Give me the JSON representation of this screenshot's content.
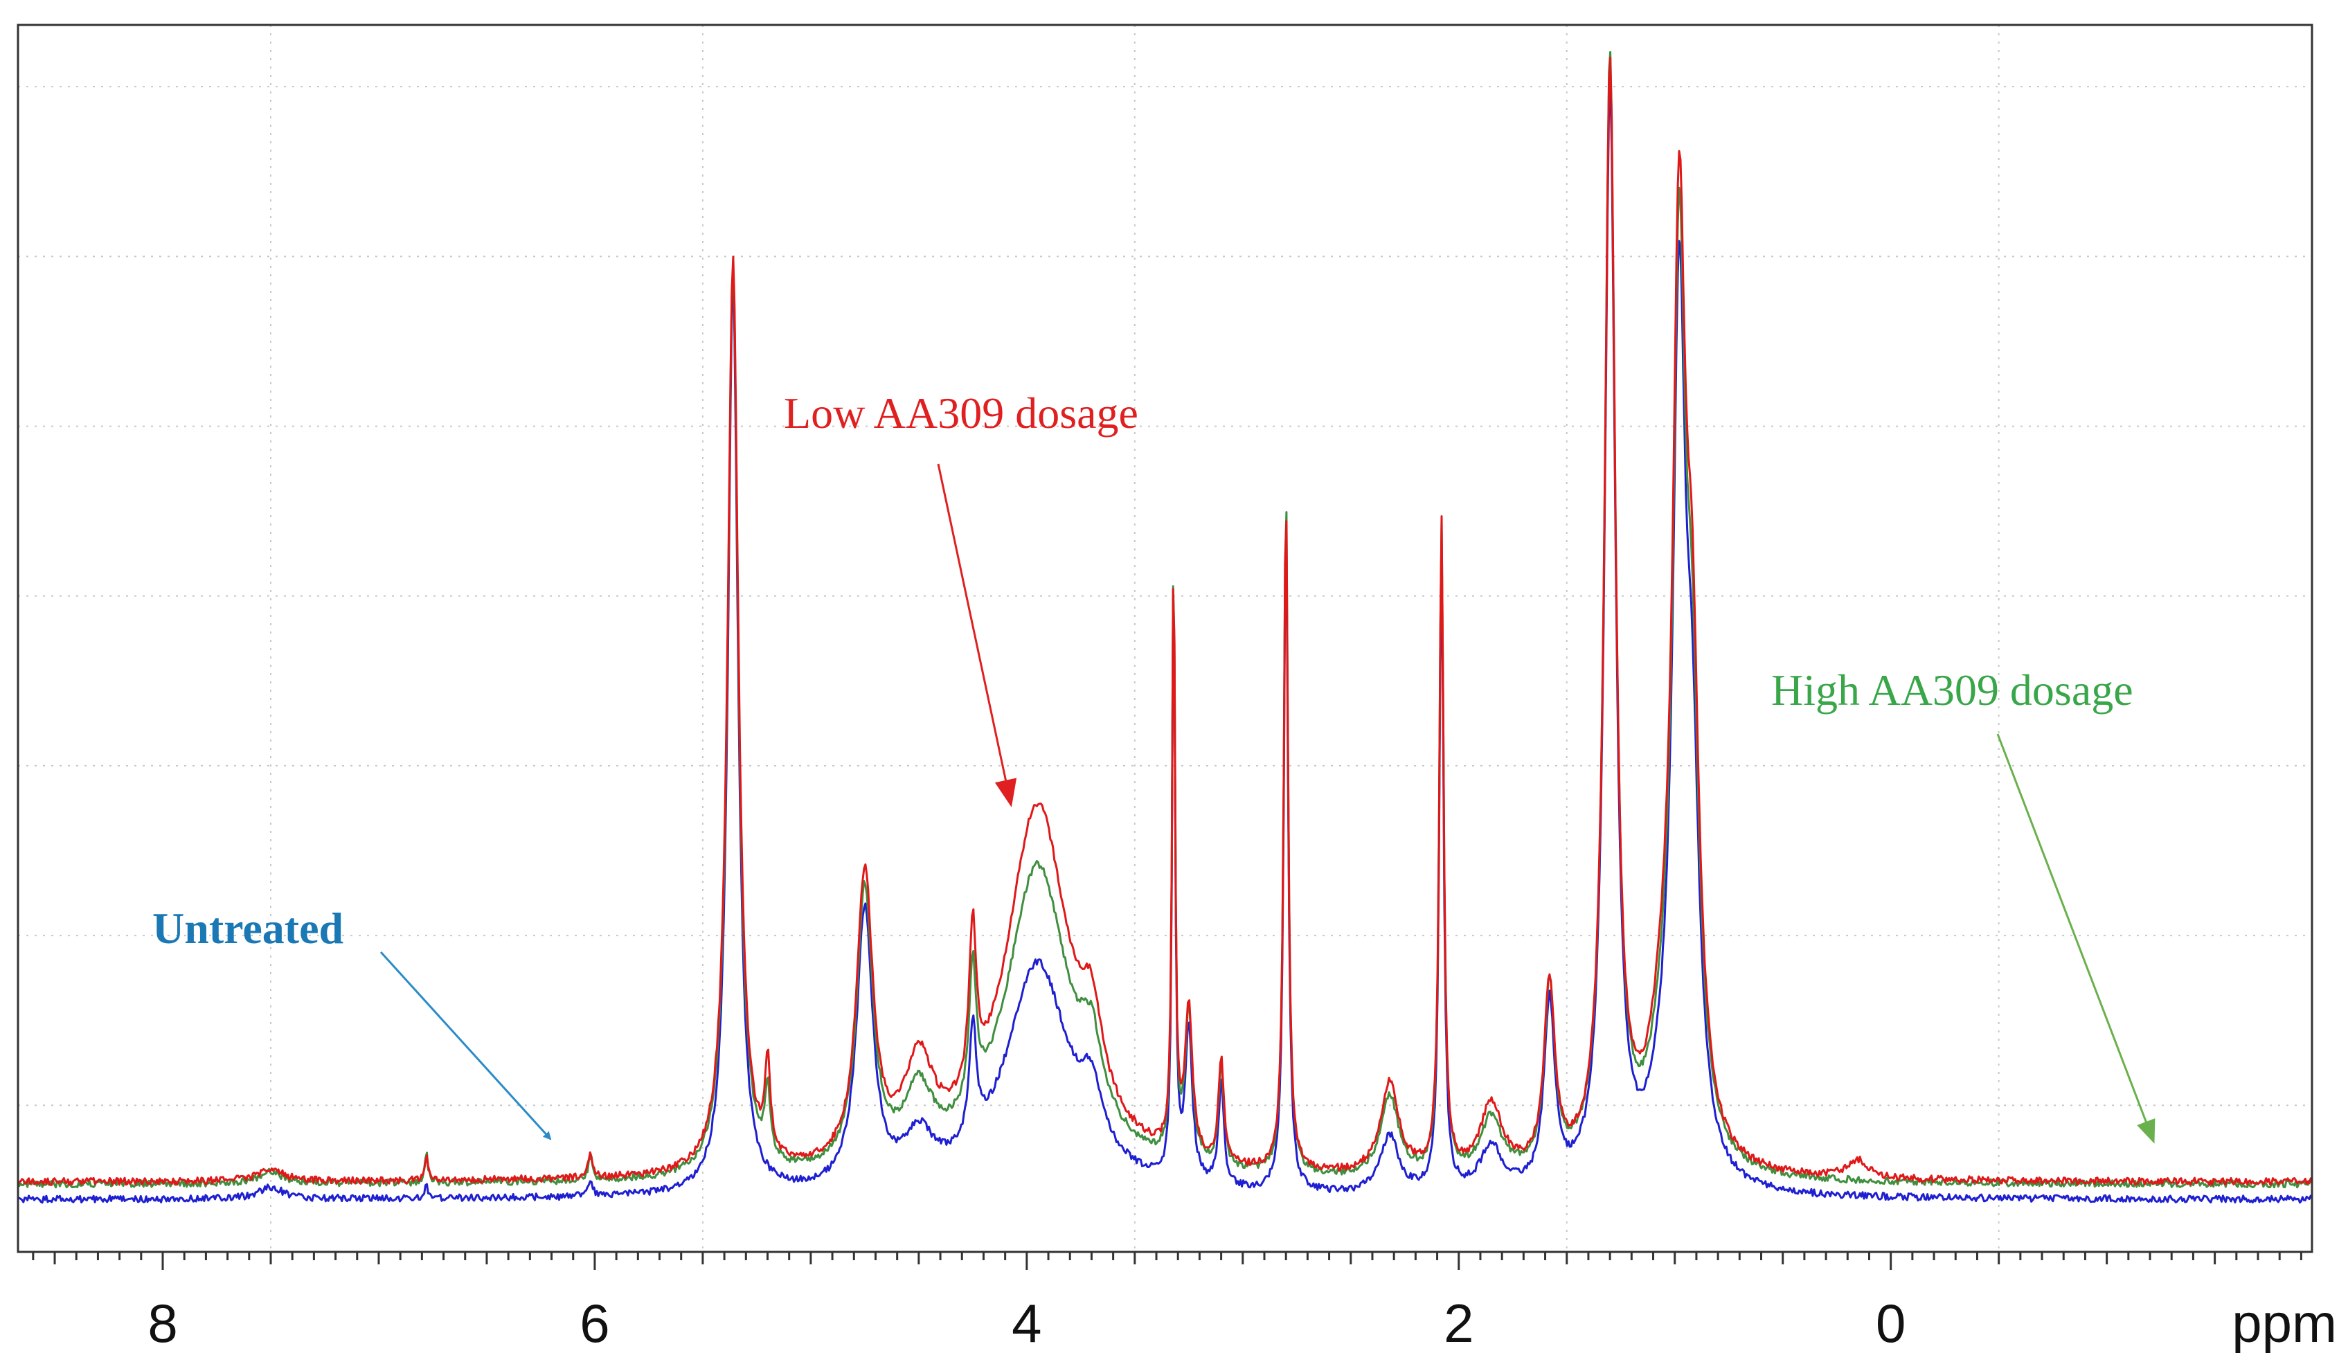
{
  "chart_data": {
    "type": "line",
    "title": "",
    "xlabel": "ppm",
    "ylabel": "",
    "x_reversed": true,
    "xlim": [
      8.67,
      -1.95
    ],
    "ylim": [
      -0.06,
      1.0
    ],
    "x_major_ticks": [
      8,
      6,
      4,
      2,
      0
    ],
    "x_tick_labels": [
      "8",
      "6",
      "4",
      "2",
      "0"
    ],
    "x_grid": [
      7.5,
      5.5,
      3.5,
      1.5,
      -0.5
    ],
    "y_grid": [
      0.0667,
      0.2133,
      0.36,
      0.5067,
      0.6533,
      0.8,
      0.9467
    ],
    "grid": "dotted",
    "series": [
      {
        "name": "Untreated",
        "color": "#1f1fd2",
        "baseline": -0.015,
        "peaks": [
          [
            5.36,
            0.79,
            0.028
          ],
          [
            4.75,
            0.24,
            0.045
          ],
          [
            4.5,
            0.04,
            0.08
          ],
          [
            4.25,
            0.1,
            0.02
          ],
          [
            3.95,
            0.2,
            0.18
          ],
          [
            3.7,
            0.05,
            0.06
          ],
          [
            3.32,
            0.54,
            0.008
          ],
          [
            3.25,
            0.13,
            0.02
          ],
          [
            3.1,
            0.09,
            0.015
          ],
          [
            2.8,
            0.58,
            0.012
          ],
          [
            2.32,
            0.05,
            0.05
          ],
          [
            2.08,
            0.55,
            0.012
          ],
          [
            1.85,
            0.04,
            0.06
          ],
          [
            1.58,
            0.16,
            0.03
          ],
          [
            1.3,
            0.95,
            0.03
          ],
          [
            1.05,
            0.05,
            0.08
          ],
          [
            0.98,
            0.7,
            0.035
          ],
          [
            0.92,
            0.3,
            0.04
          ],
          [
            7.5,
            0.01,
            0.07
          ],
          [
            6.78,
            0.01,
            0.01
          ],
          [
            6.02,
            0.015,
            0.012
          ]
        ]
      },
      {
        "name": "Low AA309 dosage",
        "color": "#e01818",
        "baseline": 0.0,
        "peaks": [
          [
            5.36,
            0.79,
            0.03
          ],
          [
            5.2,
            0.08,
            0.015
          ],
          [
            4.75,
            0.25,
            0.045
          ],
          [
            4.5,
            0.08,
            0.08
          ],
          [
            4.25,
            0.14,
            0.02
          ],
          [
            3.95,
            0.32,
            0.18
          ],
          [
            3.7,
            0.07,
            0.06
          ],
          [
            3.32,
            0.52,
            0.008
          ],
          [
            3.25,
            0.13,
            0.02
          ],
          [
            3.1,
            0.09,
            0.015
          ],
          [
            2.8,
            0.58,
            0.012
          ],
          [
            2.32,
            0.08,
            0.05
          ],
          [
            2.08,
            0.56,
            0.012
          ],
          [
            1.85,
            0.06,
            0.06
          ],
          [
            1.58,
            0.16,
            0.03
          ],
          [
            1.3,
            0.95,
            0.03
          ],
          [
            1.05,
            0.09,
            0.08
          ],
          [
            0.98,
            0.72,
            0.035
          ],
          [
            0.92,
            0.36,
            0.04
          ],
          [
            7.5,
            0.01,
            0.07
          ],
          [
            6.78,
            0.02,
            0.01
          ],
          [
            6.02,
            0.02,
            0.012
          ],
          [
            0.15,
            0.015,
            0.06
          ]
        ]
      },
      {
        "name": "High AA309 dosage",
        "color": "#3f8f3f",
        "baseline": -0.002,
        "peaks": [
          [
            5.36,
            0.79,
            0.029
          ],
          [
            5.2,
            0.06,
            0.015
          ],
          [
            4.75,
            0.24,
            0.045
          ],
          [
            4.5,
            0.06,
            0.08
          ],
          [
            4.25,
            0.12,
            0.02
          ],
          [
            3.95,
            0.27,
            0.18
          ],
          [
            3.7,
            0.06,
            0.06
          ],
          [
            3.32,
            0.53,
            0.008
          ],
          [
            3.25,
            0.13,
            0.02
          ],
          [
            3.1,
            0.09,
            0.015
          ],
          [
            2.8,
            0.59,
            0.012
          ],
          [
            2.32,
            0.07,
            0.05
          ],
          [
            2.08,
            0.56,
            0.012
          ],
          [
            1.85,
            0.05,
            0.06
          ],
          [
            1.58,
            0.16,
            0.03
          ],
          [
            1.3,
            0.96,
            0.03
          ],
          [
            1.05,
            0.07,
            0.08
          ],
          [
            0.98,
            0.71,
            0.035
          ],
          [
            0.92,
            0.33,
            0.04
          ],
          [
            7.5,
            0.01,
            0.07
          ],
          [
            6.78,
            0.025,
            0.01
          ],
          [
            6.02,
            0.02,
            0.012
          ]
        ]
      }
    ],
    "annotations": [
      {
        "text": "Untreated",
        "color": "#1a78b4",
        "bold": true,
        "arrow_to": [
          6.2,
          0.015
        ]
      },
      {
        "text": "Low AA309 dosage",
        "color": "#e02020",
        "bold": false,
        "arrow_to": [
          4.12,
          0.32
        ]
      },
      {
        "text": "High AA309 dosage",
        "color": "#3aa64a",
        "bold": false,
        "arrow_to": [
          -1.2,
          0.013
        ]
      }
    ]
  }
}
